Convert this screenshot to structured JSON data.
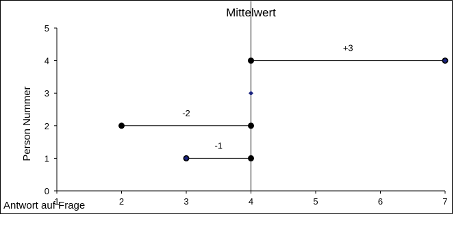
{
  "chart_data": {
    "type": "scatter",
    "title": "Mittelwert",
    "xlabel": "Antwort auf Frage",
    "ylabel": "Person Nummer",
    "xlim": [
      1,
      7
    ],
    "ylim": [
      0,
      5
    ],
    "x_ticks": [
      1,
      2,
      3,
      4,
      5,
      6,
      7
    ],
    "y_ticks": [
      0,
      1,
      2,
      3,
      4,
      5
    ],
    "grid": false,
    "mean_line": {
      "x": 4,
      "label": "Mittelwert"
    },
    "series": [
      {
        "marker": "circle",
        "color": "#000000",
        "points": [
          {
            "x": 3,
            "y": 1
          },
          {
            "x": 4,
            "y": 1
          },
          {
            "x": 2,
            "y": 2
          },
          {
            "x": 4,
            "y": 2
          },
          {
            "x": 4,
            "y": 4
          },
          {
            "x": 7,
            "y": 4
          }
        ]
      },
      {
        "marker": "diamond",
        "color": "#1a237e",
        "points": [
          {
            "x": 3,
            "y": 1
          },
          {
            "x": 4,
            "y": 3
          },
          {
            "x": 7,
            "y": 4
          }
        ]
      }
    ],
    "deviation_segments": [
      {
        "y": 1,
        "x_from": 3,
        "x_to": 4,
        "label": "-1"
      },
      {
        "y": 2,
        "x_from": 2,
        "x_to": 4,
        "label": "-2"
      },
      {
        "y": 4,
        "x_from": 4,
        "x_to": 7,
        "label": "+3"
      }
    ]
  }
}
